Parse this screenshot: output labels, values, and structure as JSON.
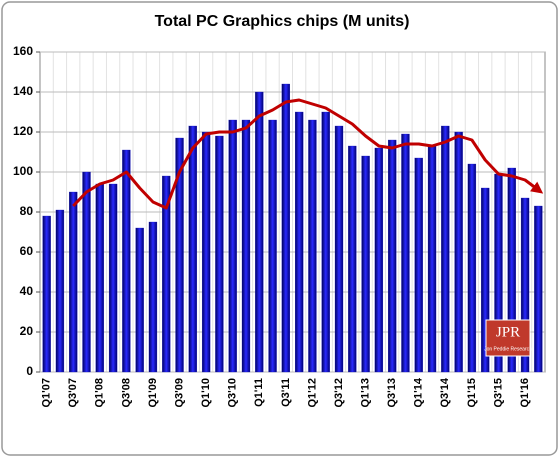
{
  "chart_data": {
    "type": "bar",
    "title": "Total PC Graphics chips (M units)",
    "categories": [
      "Q1'07",
      null,
      "Q3'07",
      null,
      "Q1'08",
      null,
      "Q3'08",
      null,
      "Q1'09",
      null,
      "Q3'09",
      null,
      "Q1'10",
      null,
      "Q3'10",
      null,
      "Q1'11",
      null,
      "Q3'11",
      null,
      "Q1'12",
      null,
      "Q3'12",
      null,
      "Q1'13",
      null,
      "Q3'13",
      null,
      "Q1'14",
      null,
      "Q3'14",
      null,
      "Q1'15",
      null,
      "Q3'15",
      null,
      "Q1'16",
      null
    ],
    "series": [
      {
        "type": "bar",
        "color": "#1414c8",
        "values": [
          78,
          81,
          90,
          100,
          94,
          94,
          111,
          72,
          75,
          98,
          117,
          123,
          120,
          118,
          126,
          126,
          140,
          126,
          144,
          130,
          126,
          130,
          123,
          113,
          108,
          112,
          116,
          119,
          107,
          113,
          123,
          120,
          104,
          92,
          99,
          102,
          87,
          83
        ]
      },
      {
        "type": "line",
        "color": "#c00000",
        "values": [
          null,
          null,
          83,
          90,
          94,
          96,
          100,
          92,
          85,
          82,
          100,
          112,
          119,
          120,
          120,
          122,
          128,
          131,
          135,
          136,
          134,
          132,
          128,
          124,
          118,
          113,
          112,
          114,
          114,
          113,
          115,
          118,
          116,
          106,
          99,
          98,
          96,
          91
        ]
      }
    ],
    "ylim": [
      0,
      160
    ],
    "yticks": [
      0,
      20,
      40,
      60,
      80,
      100,
      120,
      140,
      160
    ],
    "grid": true,
    "logo": {
      "title": "JPR",
      "subtitle": "Jon Peddie Research"
    }
  }
}
